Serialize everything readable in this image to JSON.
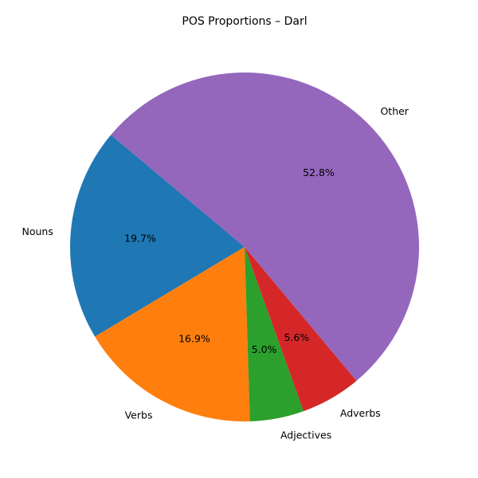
{
  "chart_data": {
    "type": "pie",
    "title": "POS Proportions – Darl",
    "categories": [
      "Nouns",
      "Verbs",
      "Adjectives",
      "Adverbs",
      "Other"
    ],
    "values": [
      19.7,
      16.9,
      5.0,
      5.6,
      52.8
    ],
    "labels": [
      "19.7%",
      "16.9%",
      "5.0%",
      "5.6%",
      "52.8%"
    ],
    "colors": [
      "#1f77b4",
      "#ff7f0e",
      "#2ca02c",
      "#d62728",
      "#9467bd"
    ],
    "start_angle_deg": 140,
    "direction": "counterclockwise",
    "legend": "none"
  }
}
